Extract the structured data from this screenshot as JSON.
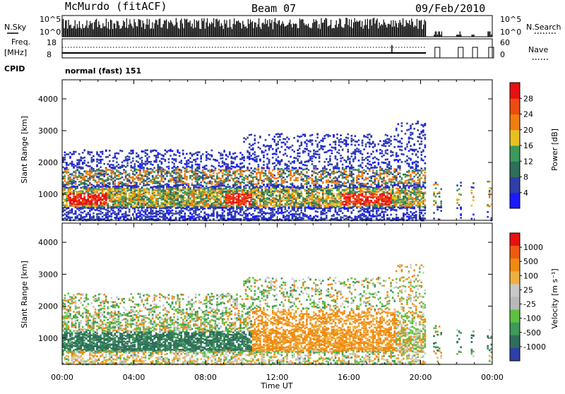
{
  "header": {
    "station": "McMurdo (fitACF)",
    "beam": "Beam 07",
    "date": "09/Feb/2010"
  },
  "noise_panel": {
    "left_label": "N.Sky",
    "right_label": "N.Search",
    "left_ticks": [
      "10^5",
      "10^0"
    ],
    "right_ticks": [
      "10^5",
      "10^0"
    ]
  },
  "freq_panel": {
    "left_label_1": "Freq.",
    "left_label_2": "[MHz]",
    "right_label": "Nave",
    "left_ticks": [
      "18",
      "8"
    ],
    "right_ticks": [
      "60",
      "0"
    ]
  },
  "cpid": {
    "label": "CPID",
    "value": "normal (fast) 151"
  },
  "colors": {
    "power": [
      "#1a1aff",
      "#2e3fa8",
      "#2e6e5a",
      "#3c9a5a",
      "#e8c020",
      "#f07d10",
      "#ee4b10",
      "#e81010"
    ],
    "velocity": [
      "#e81010",
      "#ee5a10",
      "#f08a10",
      "#f0b040",
      "#c8c8c8",
      "#b8b8b8",
      "#5fc040",
      "#3c9a5a",
      "#2e6e5a",
      "#2e3fa8"
    ]
  },
  "chart_data": [
    {
      "type": "heatmap",
      "name": "power",
      "ylabel": "Slant Range [km]",
      "yticks": [
        "1000",
        "2000",
        "3000",
        "4000"
      ],
      "ylim": [
        180,
        4600
      ],
      "colorbar_label": "Power [dB]",
      "colorbar_ticks": [
        "4",
        "8",
        "12",
        "16",
        "20",
        "24",
        "28"
      ],
      "colorbar_range": [
        0,
        32
      ]
    },
    {
      "type": "heatmap",
      "name": "velocity",
      "ylabel": "Slant Range [km]",
      "yticks": [
        "1000",
        "2000",
        "3000",
        "4000"
      ],
      "ylim": [
        180,
        4600
      ],
      "colorbar_label": "Velocity [m s⁻¹]",
      "colorbar_ticks": [
        "1000",
        "500",
        "100",
        "25",
        "-25",
        "-100",
        "-500",
        "-1000"
      ]
    }
  ],
  "x_axis": {
    "label": "Time UT",
    "ticks": [
      "00:00",
      "04:00",
      "08:00",
      "12:00",
      "16:00",
      "20:00",
      "00:00"
    ]
  }
}
